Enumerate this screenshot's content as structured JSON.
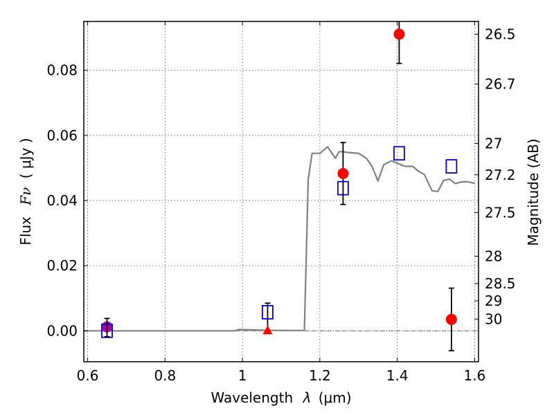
{
  "chart_data": {
    "type": "scatter",
    "title": "",
    "xlabel": "Wavelength",
    "xlabel_symbol": "λ",
    "xlabel_unit": "(μm)",
    "ylabel": "Flux",
    "ylabel_symbol": "Fν",
    "ylabel_unit": "( μJy )",
    "y2label": "Magnitude (AB)",
    "xlim": [
      0.59,
      1.61
    ],
    "ylim": [
      -0.0095,
      0.095
    ],
    "x_ticks": [
      {
        "value": 0.6,
        "label": "0.6"
      },
      {
        "value": 0.8,
        "label": "0.8"
      },
      {
        "value": 1.0,
        "label": "1"
      },
      {
        "value": 1.2,
        "label": "1.2"
      },
      {
        "value": 1.4,
        "label": "1.4"
      },
      {
        "value": 1.6,
        "label": "1.6"
      }
    ],
    "y_ticks": [
      {
        "value": 0.0,
        "label": "0.00"
      },
      {
        "value": 0.02,
        "label": "0.02"
      },
      {
        "value": 0.04,
        "label": "0.04"
      },
      {
        "value": 0.06,
        "label": "0.06"
      },
      {
        "value": 0.08,
        "label": "0.08"
      }
    ],
    "y2_ticks": [
      {
        "flux": 0.0911,
        "label": "26.5"
      },
      {
        "flux": 0.0758,
        "label": "26.7"
      },
      {
        "flux": 0.0575,
        "label": "27"
      },
      {
        "flux": 0.0479,
        "label": "27.2"
      },
      {
        "flux": 0.0363,
        "label": "27.5"
      },
      {
        "flux": 0.0229,
        "label": "28"
      },
      {
        "flux": 0.0145,
        "label": "28.5"
      },
      {
        "flux": 0.0092,
        "label": "29"
      },
      {
        "flux": 0.0036,
        "label": "30"
      }
    ],
    "grid": true,
    "colors": {
      "model": "#808080",
      "observed": "#ff0000",
      "model_flux": "#0000cc",
      "magenta": "#aa00aa",
      "errorbar": "#000000"
    },
    "series": [
      {
        "name": "model-sed",
        "kind": "line",
        "x": [
          0.59,
          0.98,
          0.99,
          1.02,
          1.05,
          1.1,
          1.15,
          1.16,
          1.17,
          1.18,
          1.2,
          1.22,
          1.24,
          1.25,
          1.26,
          1.27,
          1.3,
          1.32,
          1.335,
          1.35,
          1.365,
          1.385,
          1.4,
          1.42,
          1.44,
          1.455,
          1.47,
          1.49,
          1.505,
          1.52,
          1.535,
          1.55,
          1.565,
          1.58,
          1.6
        ],
        "y": [
          0.0,
          0.0,
          0.0004,
          0.0003,
          0.0002,
          0.0001,
          0.0001,
          0.0001,
          0.0465,
          0.0545,
          0.0545,
          0.0565,
          0.053,
          0.055,
          0.055,
          0.0548,
          0.0545,
          0.053,
          0.0505,
          0.046,
          0.051,
          0.0522,
          0.0515,
          0.0505,
          0.0505,
          0.049,
          0.048,
          0.043,
          0.0428,
          0.0462,
          0.0466,
          0.0452,
          0.0457,
          0.0458,
          0.0453
        ]
      },
      {
        "name": "observed-flux",
        "kind": "points",
        "marker": "circle",
        "points": [
          {
            "x": 0.65,
            "y": 0.001,
            "err": 0.0028
          },
          {
            "x": 1.26,
            "y": 0.0483,
            "err": 0.0095
          },
          {
            "x": 1.405,
            "y": 0.0911,
            "err": 0.009
          },
          {
            "x": 1.54,
            "y": 0.0035,
            "err": 0.0096
          }
        ]
      },
      {
        "name": "model-band-flux",
        "kind": "points",
        "marker": "square",
        "points": [
          {
            "x": 0.65,
            "y": 0.0
          },
          {
            "x": 1.065,
            "y": 0.0057
          },
          {
            "x": 1.26,
            "y": 0.0438
          },
          {
            "x": 1.405,
            "y": 0.0545
          },
          {
            "x": 1.54,
            "y": 0.0505
          }
        ]
      },
      {
        "name": "upper-limit",
        "kind": "points",
        "marker": "triangle",
        "points": [
          {
            "x": 1.065,
            "y": 0.0,
            "err_up": 0.0085
          }
        ]
      }
    ]
  }
}
